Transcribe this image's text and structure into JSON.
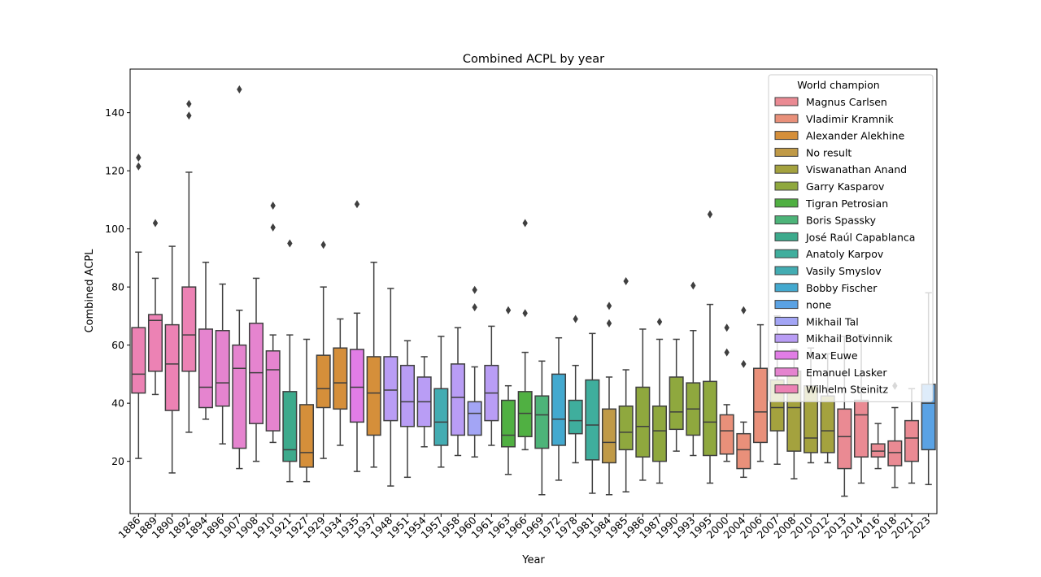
{
  "chart_data": {
    "type": "box",
    "title": "Combined ACPL by year",
    "xlabel": "Year",
    "ylabel": "Combined ACPL",
    "ylim": [
      2,
      155
    ],
    "yticks": [
      20,
      40,
      60,
      80,
      100,
      120,
      140
    ],
    "legend_title": "World champion",
    "legend_position": "top-right",
    "legend": [
      {
        "name": "Magnus Carlsen",
        "color": "#ea8a93"
      },
      {
        "name": "Vladimir Kramnik",
        "color": "#e9907a"
      },
      {
        "name": "Alexander Alekhine",
        "color": "#d58f3a"
      },
      {
        "name": "No result",
        "color": "#c09a47"
      },
      {
        "name": "Viswanathan Anand",
        "color": "#a4a23e"
      },
      {
        "name": "Garry Kasparov",
        "color": "#8fa83e"
      },
      {
        "name": "Tigran Petrosian",
        "color": "#50b042"
      },
      {
        "name": "Boris Spassky",
        "color": "#4db479"
      },
      {
        "name": "José Raúl Capablanca",
        "color": "#3daa8c"
      },
      {
        "name": "Anatoly Karpov",
        "color": "#3fae9d"
      },
      {
        "name": "Vasily Smyslov",
        "color": "#43acb2"
      },
      {
        "name": "Bobby Fischer",
        "color": "#43a9cf"
      },
      {
        "name": "none",
        "color": "#5aa2e4"
      },
      {
        "name": "Mikhail Tal",
        "color": "#a3a5f5"
      },
      {
        "name": "Mikhail Botvinnik",
        "color": "#b99df5"
      },
      {
        "name": "Max Euwe",
        "color": "#e17de6"
      },
      {
        "name": "Emanuel Lasker",
        "color": "#e584cf"
      },
      {
        "name": "Wilhelm Steinitz",
        "color": "#ec82b4"
      }
    ],
    "boxes": [
      {
        "year": "1886",
        "champion": "Wilhelm Steinitz",
        "whisker_low": 21,
        "q1": 43.5,
        "median": 50,
        "q3": 66,
        "whisker_high": 92,
        "outliers": [
          121.5,
          124.5
        ]
      },
      {
        "year": "1889",
        "champion": "Wilhelm Steinitz",
        "whisker_low": 43,
        "q1": 51,
        "median": 68.5,
        "q3": 70.5,
        "whisker_high": 83,
        "outliers": [
          102
        ]
      },
      {
        "year": "1890",
        "champion": "Wilhelm Steinitz",
        "whisker_low": 16,
        "q1": 37.5,
        "median": 53.5,
        "q3": 67,
        "whisker_high": 94,
        "outliers": []
      },
      {
        "year": "1892",
        "champion": "Wilhelm Steinitz",
        "whisker_low": 30,
        "q1": 51,
        "median": 63.5,
        "q3": 80,
        "whisker_high": 119.5,
        "outliers": [
          139,
          143
        ]
      },
      {
        "year": "1894",
        "champion": "Emanuel Lasker",
        "whisker_low": 34.5,
        "q1": 38.5,
        "median": 45.5,
        "q3": 65.5,
        "whisker_high": 88.5,
        "outliers": []
      },
      {
        "year": "1896",
        "champion": "Emanuel Lasker",
        "whisker_low": 26,
        "q1": 39,
        "median": 47,
        "q3": 65,
        "whisker_high": 81,
        "outliers": []
      },
      {
        "year": "1907",
        "champion": "Emanuel Lasker",
        "whisker_low": 17.5,
        "q1": 24.5,
        "median": 52,
        "q3": 60,
        "whisker_high": 72,
        "outliers": [
          148
        ]
      },
      {
        "year": "1908",
        "champion": "Emanuel Lasker",
        "whisker_low": 20,
        "q1": 33,
        "median": 50.5,
        "q3": 67.5,
        "whisker_high": 83,
        "outliers": []
      },
      {
        "year": "1910",
        "champion": "Emanuel Lasker",
        "whisker_low": 26.5,
        "q1": 30.5,
        "median": 51.5,
        "q3": 58,
        "whisker_high": 63.5,
        "outliers": [
          100.5,
          108
        ]
      },
      {
        "year": "1921",
        "champion": "José Raúl Capablanca",
        "whisker_low": 13,
        "q1": 20,
        "median": 24,
        "q3": 44,
        "whisker_high": 63.5,
        "outliers": [
          95
        ]
      },
      {
        "year": "1927",
        "champion": "Alexander Alekhine",
        "whisker_low": 13,
        "q1": 18,
        "median": 23,
        "q3": 39.5,
        "whisker_high": 62,
        "outliers": []
      },
      {
        "year": "1929",
        "champion": "Alexander Alekhine",
        "whisker_low": 21,
        "q1": 38.5,
        "median": 45,
        "q3": 56.5,
        "whisker_high": 80,
        "outliers": [
          94.5
        ]
      },
      {
        "year": "1934",
        "champion": "Alexander Alekhine",
        "whisker_low": 25.5,
        "q1": 38,
        "median": 47,
        "q3": 59,
        "whisker_high": 69,
        "outliers": []
      },
      {
        "year": "1935",
        "champion": "Max Euwe",
        "whisker_low": 16.5,
        "q1": 33.5,
        "median": 45.5,
        "q3": 58.5,
        "whisker_high": 71,
        "outliers": [
          108.5
        ]
      },
      {
        "year": "1937",
        "champion": "Alexander Alekhine",
        "whisker_low": 18,
        "q1": 29,
        "median": 43.5,
        "q3": 56,
        "whisker_high": 88.5,
        "outliers": []
      },
      {
        "year": "1948",
        "champion": "Mikhail Botvinnik",
        "whisker_low": 11.5,
        "q1": 34,
        "median": 44.5,
        "q3": 56,
        "whisker_high": 79.5,
        "outliers": []
      },
      {
        "year": "1951",
        "champion": "Mikhail Botvinnik",
        "whisker_low": 14.5,
        "q1": 32,
        "median": 40.5,
        "q3": 53,
        "whisker_high": 61.5,
        "outliers": []
      },
      {
        "year": "1954",
        "champion": "Mikhail Botvinnik",
        "whisker_low": 25,
        "q1": 32,
        "median": 40.5,
        "q3": 49,
        "whisker_high": 56,
        "outliers": []
      },
      {
        "year": "1957",
        "champion": "Vasily Smyslov",
        "whisker_low": 18,
        "q1": 25.5,
        "median": 33.5,
        "q3": 45,
        "whisker_high": 63,
        "outliers": []
      },
      {
        "year": "1958",
        "champion": "Mikhail Botvinnik",
        "whisker_low": 22,
        "q1": 29,
        "median": 42,
        "q3": 53.5,
        "whisker_high": 66,
        "outliers": []
      },
      {
        "year": "1960",
        "champion": "Mikhail Tal",
        "whisker_low": 21.5,
        "q1": 29,
        "median": 36.5,
        "q3": 40.5,
        "whisker_high": 52.5,
        "outliers": [
          73,
          79
        ]
      },
      {
        "year": "1961",
        "champion": "Mikhail Botvinnik",
        "whisker_low": 25.5,
        "q1": 34,
        "median": 43.5,
        "q3": 53,
        "whisker_high": 66.5,
        "outliers": []
      },
      {
        "year": "1963",
        "champion": "Tigran Petrosian",
        "whisker_low": 15.5,
        "q1": 25,
        "median": 29,
        "q3": 41,
        "whisker_high": 46,
        "outliers": [
          72
        ]
      },
      {
        "year": "1966",
        "champion": "Tigran Petrosian",
        "whisker_low": 24,
        "q1": 28.5,
        "median": 36.5,
        "q3": 44,
        "whisker_high": 57.5,
        "outliers": [
          71,
          102
        ]
      },
      {
        "year": "1969",
        "champion": "Boris Spassky",
        "whisker_low": 8.5,
        "q1": 24.5,
        "median": 36,
        "q3": 42.5,
        "whisker_high": 54.5,
        "outliers": []
      },
      {
        "year": "1972",
        "champion": "Bobby Fischer",
        "whisker_low": 13.5,
        "q1": 25.5,
        "median": 34.5,
        "q3": 50,
        "whisker_high": 62.5,
        "outliers": []
      },
      {
        "year": "1978",
        "champion": "Anatoly Karpov",
        "whisker_low": 19.5,
        "q1": 29.5,
        "median": 34,
        "q3": 41,
        "whisker_high": 53,
        "outliers": [
          69
        ]
      },
      {
        "year": "1981",
        "champion": "Anatoly Karpov",
        "whisker_low": 9,
        "q1": 20.5,
        "median": 32.5,
        "q3": 48,
        "whisker_high": 64,
        "outliers": []
      },
      {
        "year": "1984",
        "champion": "No result",
        "whisker_low": 8.5,
        "q1": 19.5,
        "median": 26.5,
        "q3": 38,
        "whisker_high": 49,
        "outliers": [
          67.5,
          73.5
        ]
      },
      {
        "year": "1985",
        "champion": "Garry Kasparov",
        "whisker_low": 9.5,
        "q1": 24,
        "median": 30,
        "q3": 39,
        "whisker_high": 51.5,
        "outliers": [
          82
        ]
      },
      {
        "year": "1986",
        "champion": "Garry Kasparov",
        "whisker_low": 13.5,
        "q1": 21.5,
        "median": 32,
        "q3": 45.5,
        "whisker_high": 65.5,
        "outliers": []
      },
      {
        "year": "1987",
        "champion": "Garry Kasparov",
        "whisker_low": 12.5,
        "q1": 20,
        "median": 30.5,
        "q3": 39,
        "whisker_high": 62,
        "outliers": [
          68
        ]
      },
      {
        "year": "1990",
        "champion": "Garry Kasparov",
        "whisker_low": 23.5,
        "q1": 31,
        "median": 37,
        "q3": 49,
        "whisker_high": 62,
        "outliers": []
      },
      {
        "year": "1993",
        "champion": "Garry Kasparov",
        "whisker_low": 22,
        "q1": 29,
        "median": 38,
        "q3": 47,
        "whisker_high": 65,
        "outliers": [
          80.5
        ]
      },
      {
        "year": "1995",
        "champion": "Garry Kasparov",
        "whisker_low": 12.5,
        "q1": 22,
        "median": 33.5,
        "q3": 47.5,
        "whisker_high": 74,
        "outliers": [
          105
        ]
      },
      {
        "year": "2000",
        "champion": "Vladimir Kramnik",
        "whisker_low": 20,
        "q1": 22.5,
        "median": 30.5,
        "q3": 36,
        "whisker_high": 39.5,
        "outliers": [
          57.5,
          66
        ]
      },
      {
        "year": "2004",
        "champion": "Vladimir Kramnik",
        "whisker_low": 14.5,
        "q1": 17.5,
        "median": 24,
        "q3": 29.5,
        "whisker_high": 33.5,
        "outliers": [
          53.5,
          72
        ]
      },
      {
        "year": "2006",
        "champion": "Vladimir Kramnik",
        "whisker_low": 20,
        "q1": 26.5,
        "median": 37,
        "q3": 52,
        "whisker_high": 67,
        "outliers": []
      },
      {
        "year": "2007",
        "champion": "Viswanathan Anand",
        "whisker_low": 19,
        "q1": 30.5,
        "median": 38.5,
        "q3": 48,
        "whisker_high": 70,
        "outliers": []
      },
      {
        "year": "2008",
        "champion": "Viswanathan Anand",
        "whisker_low": 14,
        "q1": 23.5,
        "median": 38.5,
        "q3": 51,
        "whisker_high": 58.5,
        "outliers": []
      },
      {
        "year": "2010",
        "champion": "Viswanathan Anand",
        "whisker_low": 19.5,
        "q1": 23,
        "median": 28,
        "q3": 46,
        "whisker_high": 59,
        "outliers": []
      },
      {
        "year": "2012",
        "champion": "Viswanathan Anand",
        "whisker_low": 19.5,
        "q1": 23,
        "median": 30.5,
        "q3": 42.5,
        "whisker_high": 57,
        "outliers": []
      },
      {
        "year": "2013",
        "champion": "Magnus Carlsen",
        "whisker_low": 8,
        "q1": 17.5,
        "median": 28.5,
        "q3": 38,
        "whisker_high": 63,
        "outliers": []
      },
      {
        "year": "2014",
        "champion": "Magnus Carlsen",
        "whisker_low": 12.5,
        "q1": 21.5,
        "median": 36,
        "q3": 41,
        "whisker_high": 63.5,
        "outliers": []
      },
      {
        "year": "2016",
        "champion": "Magnus Carlsen",
        "whisker_low": 17.5,
        "q1": 21.5,
        "median": 23.5,
        "q3": 26,
        "whisker_high": 33,
        "outliers": []
      },
      {
        "year": "2018",
        "champion": "Magnus Carlsen",
        "whisker_low": 11,
        "q1": 18.5,
        "median": 23,
        "q3": 27,
        "whisker_high": 38.5,
        "outliers": [
          46
        ]
      },
      {
        "year": "2021",
        "champion": "Magnus Carlsen",
        "whisker_low": 12.5,
        "q1": 20,
        "median": 28,
        "q3": 34,
        "whisker_high": 45,
        "outliers": []
      },
      {
        "year": "2023",
        "champion": "none",
        "whisker_low": 12,
        "q1": 24,
        "median": 40,
        "q3": 46.5,
        "whisker_high": 78,
        "outliers": []
      }
    ]
  }
}
